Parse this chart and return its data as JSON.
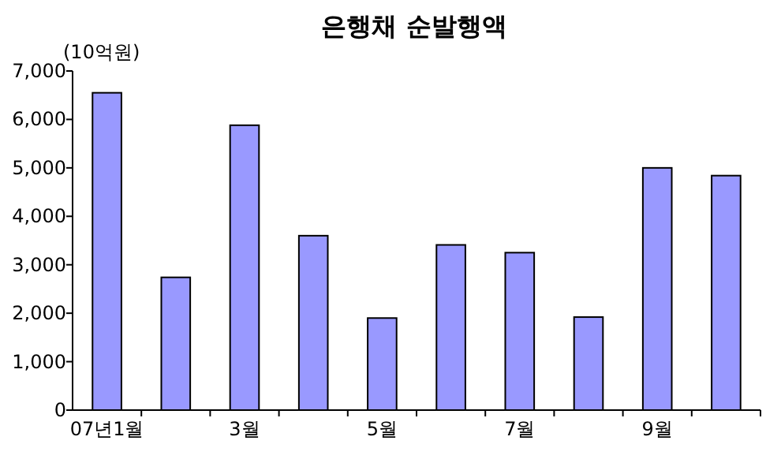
{
  "chart_data": {
    "type": "bar",
    "title": "은행채 순발행액",
    "ylabel": "(10억원)",
    "categories": [
      "07년1월",
      null,
      "3월",
      null,
      "5월",
      null,
      "7월",
      null,
      "9월",
      null
    ],
    "values": [
      6550,
      2740,
      5880,
      3600,
      1900,
      3410,
      3250,
      1920,
      5000,
      4840
    ],
    "color": "#9999ff",
    "ylim": [
      0,
      7000
    ],
    "yticks": [
      0,
      {
        "value": 1000,
        "label": "1,000"
      },
      {
        "value": 2000,
        "label": "2,000"
      },
      {
        "value": 3000,
        "label": "3,000"
      },
      {
        "value": 4000,
        "label": "4,000"
      },
      {
        "value": 5000,
        "label": "5,000"
      },
      {
        "value": 6000,
        "label": "6,000"
      },
      {
        "value": 7000,
        "label": "7,000"
      }
    ],
    "grid": false
  }
}
